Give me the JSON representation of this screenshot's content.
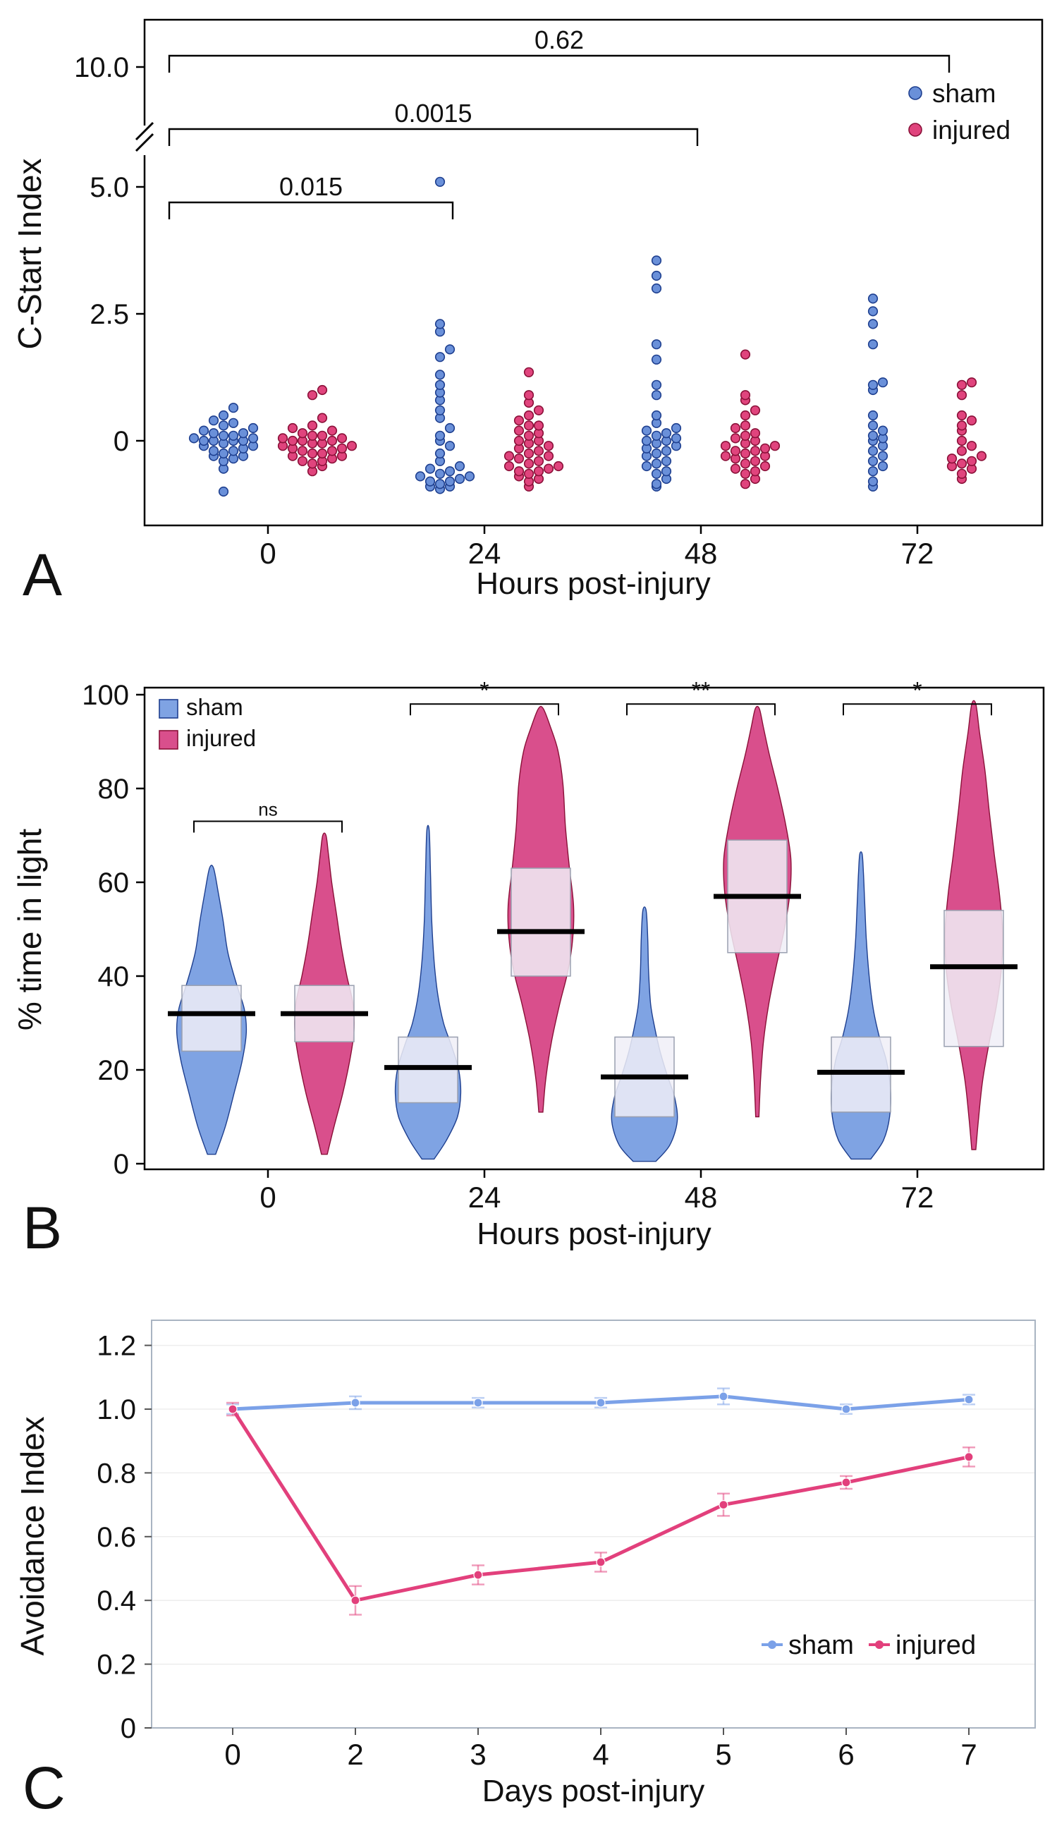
{
  "figure": {
    "background": "#ffffff",
    "colors": {
      "sham_fill": "#6a90d9",
      "sham_stroke": "#1e3f8f",
      "injured_fill": "#e0447d",
      "injured_stroke": "#8a1038",
      "sham_violin": "#7fa3e3",
      "injured_violin": "#d94f8c",
      "box_fill": "#f0eef7",
      "box_stroke": "#9aa0b0",
      "median": "#000000",
      "axis": "#000000",
      "panel_c_frame": "#a9b4c2",
      "sham_line": "#7ba1e8",
      "injured_line": "#e2407c",
      "grid": "#ededed",
      "text": "#111111"
    }
  },
  "panels": {
    "a": "A",
    "b": "B",
    "c": "C"
  },
  "chart_data": [
    {
      "id": "panelA",
      "type": "scatter",
      "title": "",
      "xlabel": "Hours post-injury",
      "ylabel": "C-Start Index",
      "x_categories": [
        "0",
        "24",
        "48",
        "72"
      ],
      "yticks": [
        {
          "v": 10,
          "label": "10.0"
        },
        {
          "v": 5,
          "label": "5.0"
        },
        {
          "v": 2.5,
          "label": "2.5"
        },
        {
          "v": 0,
          "label": "0"
        }
      ],
      "axis_break": true,
      "ylim_note": "axis broken between 5.0 and 10.0",
      "legend": [
        {
          "name": "sham"
        },
        {
          "name": "injured"
        }
      ],
      "significance": [
        {
          "label": "0.015",
          "from_group": 0,
          "to_group": 1,
          "row": 0
        },
        {
          "label": "0.0015",
          "from_group": 0,
          "to_group": 2,
          "row": 1
        },
        {
          "label": "0.62",
          "from_group": 0,
          "to_group": 3,
          "row": 2
        }
      ],
      "series": [
        {
          "name": "sham",
          "points_by_group": [
            [
              -1.0,
              -0.55,
              -0.4,
              -0.35,
              -0.3,
              -0.3,
              -0.25,
              -0.2,
              -0.2,
              -0.15,
              -0.1,
              -0.1,
              -0.05,
              0,
              0,
              0,
              0,
              0.05,
              0.05,
              0.1,
              0.1,
              0.15,
              0.15,
              0.2,
              0.25,
              0.3,
              0.35,
              0.4,
              0.5,
              0.65
            ],
            [
              5.1,
              2.3,
              2.15,
              1.8,
              1.65,
              1.3,
              1.1,
              0.95,
              0.8,
              0.6,
              0.45,
              0.25,
              0.1,
              0,
              -0.1,
              -0.25,
              -0.4,
              -0.5,
              -0.55,
              -0.6,
              -0.65,
              -0.7,
              -0.7,
              -0.75,
              -0.8,
              -0.8,
              -0.85,
              -0.9,
              -0.9,
              -0.95
            ],
            [
              3.55,
              3.25,
              3.0,
              1.9,
              1.6,
              1.1,
              0.9,
              0.5,
              0.35,
              0.25,
              0.2,
              0.15,
              0.1,
              0.05,
              0,
              0,
              -0.05,
              -0.1,
              -0.15,
              -0.2,
              -0.25,
              -0.3,
              -0.4,
              -0.45,
              -0.5,
              -0.6,
              -0.65,
              -0.75,
              -0.85,
              -0.9
            ],
            [
              2.8,
              2.55,
              2.3,
              1.9,
              1.15,
              1.1,
              1.0,
              0.5,
              0.3,
              0.2,
              0.1,
              0.05,
              0,
              -0.1,
              -0.2,
              -0.3,
              -0.4,
              -0.5,
              -0.6,
              -0.8,
              -0.9
            ]
          ]
        },
        {
          "name": "injured",
          "points_by_group": [
            [
              -0.6,
              -0.5,
              -0.45,
              -0.4,
              -0.4,
              -0.35,
              -0.3,
              -0.3,
              -0.25,
              -0.25,
              -0.2,
              -0.2,
              -0.15,
              -0.15,
              -0.1,
              -0.1,
              -0.05,
              -0.05,
              0,
              0,
              0,
              0.05,
              0.05,
              0.1,
              0.1,
              0.15,
              0.2,
              0.25,
              0.3,
              0.45,
              0.9,
              1.0
            ],
            [
              1.35,
              0.9,
              0.75,
              0.6,
              0.5,
              0.4,
              0.3,
              0.3,
              0.2,
              0.15,
              0.1,
              0,
              0,
              -0.05,
              -0.1,
              -0.15,
              -0.2,
              -0.25,
              -0.3,
              -0.3,
              -0.35,
              -0.4,
              -0.45,
              -0.5,
              -0.5,
              -0.55,
              -0.6,
              -0.6,
              -0.65,
              -0.7,
              -0.75,
              -0.8,
              -0.9
            ],
            [
              1.7,
              0.9,
              0.8,
              0.6,
              0.5,
              0.3,
              0.25,
              0.15,
              0.1,
              0.05,
              0,
              -0.05,
              -0.1,
              -0.1,
              -0.15,
              -0.2,
              -0.2,
              -0.25,
              -0.3,
              -0.3,
              -0.35,
              -0.4,
              -0.45,
              -0.5,
              -0.55,
              -0.6,
              -0.65,
              -0.75,
              -0.85
            ],
            [
              1.15,
              1.1,
              0.9,
              0.5,
              0.4,
              0.3,
              0.2,
              0,
              -0.1,
              -0.2,
              -0.3,
              -0.35,
              -0.4,
              -0.45,
              -0.5,
              -0.55,
              -0.65,
              -0.75
            ]
          ]
        }
      ]
    },
    {
      "id": "panelB",
      "type": "violin",
      "title": "",
      "xlabel": "Hours post-injury",
      "ylabel": "% time in light",
      "x_categories": [
        "0",
        "24",
        "48",
        "72"
      ],
      "yticks": [
        0,
        20,
        40,
        60,
        80,
        100
      ],
      "ylim": [
        0,
        100
      ],
      "legend": [
        {
          "name": "sham"
        },
        {
          "name": "injured"
        }
      ],
      "significance": [
        {
          "label": "ns",
          "group": 0,
          "height_v": 73
        },
        {
          "label": "*",
          "group": 1,
          "height_v": 98
        },
        {
          "label": "**",
          "group": 2,
          "height_v": 98
        },
        {
          "label": "*",
          "group": 3,
          "height_v": 98
        }
      ],
      "series": [
        {
          "name": "sham",
          "violins": [
            {
              "median": 32,
              "q1": 24,
              "q3": 38,
              "shape": [
                [
                  2,
                  0.1
                ],
                [
                  8,
                  0.34
                ],
                [
                  15,
                  0.55
                ],
                [
                  22,
                  0.75
                ],
                [
                  28,
                  0.85
                ],
                [
                  33,
                  0.8
                ],
                [
                  38,
                  0.62
                ],
                [
                  45,
                  0.4
                ],
                [
                  52,
                  0.28
                ],
                [
                  58,
                  0.16
                ],
                [
                  63,
                  0.05
                ]
              ]
            },
            {
              "median": 20.5,
              "q1": 13,
              "q3": 27,
              "shape": [
                [
                  1,
                  0.15
                ],
                [
                  5,
                  0.45
                ],
                [
                  10,
                  0.72
                ],
                [
                  15,
                  0.8
                ],
                [
                  20,
                  0.75
                ],
                [
                  25,
                  0.58
                ],
                [
                  30,
                  0.38
                ],
                [
                  36,
                  0.24
                ],
                [
                  43,
                  0.15
                ],
                [
                  52,
                  0.09
                ],
                [
                  62,
                  0.06
                ],
                [
                  71,
                  0.03
                ]
              ]
            },
            {
              "median": 18.5,
              "q1": 10,
              "q3": 27,
              "shape": [
                [
                  0.5,
                  0.28
                ],
                [
                  4,
                  0.62
                ],
                [
                  9,
                  0.8
                ],
                [
                  14,
                  0.74
                ],
                [
                  19,
                  0.55
                ],
                [
                  24,
                  0.38
                ],
                [
                  29,
                  0.25
                ],
                [
                  34,
                  0.15
                ],
                [
                  41,
                  0.1
                ],
                [
                  48,
                  0.08
                ],
                [
                  54,
                  0.04
                ]
              ]
            },
            {
              "median": 19.5,
              "q1": 11,
              "q3": 27,
              "shape": [
                [
                  1,
                  0.24
                ],
                [
                  5,
                  0.55
                ],
                [
                  10,
                  0.7
                ],
                [
                  16,
                  0.72
                ],
                [
                  22,
                  0.62
                ],
                [
                  27,
                  0.45
                ],
                [
                  33,
                  0.3
                ],
                [
                  40,
                  0.2
                ],
                [
                  48,
                  0.13
                ],
                [
                  56,
                  0.09
                ],
                [
                  62,
                  0.06
                ],
                [
                  66,
                  0.03
                ]
              ]
            }
          ]
        },
        {
          "name": "injured",
          "violins": [
            {
              "median": 32,
              "q1": 26,
              "q3": 38,
              "shape": [
                [
                  2,
                  0.07
                ],
                [
                  8,
                  0.24
                ],
                [
                  15,
                  0.45
                ],
                [
                  22,
                  0.62
                ],
                [
                  28,
                  0.72
                ],
                [
                  34,
                  0.7
                ],
                [
                  40,
                  0.55
                ],
                [
                  46,
                  0.42
                ],
                [
                  53,
                  0.3
                ],
                [
                  60,
                  0.18
                ],
                [
                  66,
                  0.1
                ],
                [
                  70,
                  0.04
                ]
              ]
            },
            {
              "median": 49.5,
              "q1": 40,
              "q3": 63,
              "shape": [
                [
                  11,
                  0.05
                ],
                [
                  18,
                  0.12
                ],
                [
                  26,
                  0.26
                ],
                [
                  34,
                  0.46
                ],
                [
                  41,
                  0.66
                ],
                [
                  48,
                  0.78
                ],
                [
                  55,
                  0.8
                ],
                [
                  63,
                  0.7
                ],
                [
                  72,
                  0.6
                ],
                [
                  81,
                  0.54
                ],
                [
                  88,
                  0.42
                ],
                [
                  93,
                  0.24
                ],
                [
                  97,
                  0.06
                ]
              ]
            },
            {
              "median": 57,
              "q1": 45,
              "q3": 69,
              "shape": [
                [
                  10,
                  0.04
                ],
                [
                  18,
                  0.08
                ],
                [
                  26,
                  0.15
                ],
                [
                  34,
                  0.28
                ],
                [
                  42,
                  0.46
                ],
                [
                  50,
                  0.66
                ],
                [
                  58,
                  0.8
                ],
                [
                  65,
                  0.82
                ],
                [
                  72,
                  0.7
                ],
                [
                  80,
                  0.5
                ],
                [
                  87,
                  0.3
                ],
                [
                  93,
                  0.15
                ],
                [
                  97,
                  0.05
                ]
              ]
            },
            {
              "median": 42,
              "q1": 25,
              "q3": 54,
              "shape": [
                [
                  3,
                  0.05
                ],
                [
                  10,
                  0.12
                ],
                [
                  18,
                  0.22
                ],
                [
                  26,
                  0.38
                ],
                [
                  34,
                  0.56
                ],
                [
                  42,
                  0.68
                ],
                [
                  50,
                  0.7
                ],
                [
                  58,
                  0.62
                ],
                [
                  66,
                  0.5
                ],
                [
                  75,
                  0.38
                ],
                [
                  84,
                  0.27
                ],
                [
                  92,
                  0.14
                ],
                [
                  98,
                  0.05
                ]
              ]
            }
          ]
        }
      ]
    },
    {
      "id": "panelC",
      "type": "line",
      "title": "",
      "xlabel": "Days post-injury",
      "ylabel": "Avoidance Index",
      "x_categories": [
        "0",
        "2",
        "3",
        "4",
        "5",
        "6",
        "7"
      ],
      "yticks": [
        {
          "v": 0,
          "label": "0"
        },
        {
          "v": 0.2,
          "label": "0.2"
        },
        {
          "v": 0.4,
          "label": "0.4"
        },
        {
          "v": 0.6,
          "label": "0.6"
        },
        {
          "v": 0.8,
          "label": "0.8"
        },
        {
          "v": 1.0,
          "label": "1.0"
        },
        {
          "v": 1.2,
          "label": "1.2"
        }
      ],
      "ylim": [
        0,
        1.28
      ],
      "grid": true,
      "legend_position": "bottom-right",
      "legend": [
        {
          "name": "sham"
        },
        {
          "name": "injured"
        }
      ],
      "series": [
        {
          "name": "sham",
          "values": [
            1.0,
            1.02,
            1.02,
            1.02,
            1.04,
            1.0,
            1.03
          ],
          "errors": [
            0.015,
            0.02,
            0.015,
            0.015,
            0.025,
            0.015,
            0.015
          ]
        },
        {
          "name": "injured",
          "values": [
            1.0,
            0.4,
            0.48,
            0.52,
            0.7,
            0.77,
            0.85
          ],
          "errors": [
            0.02,
            0.045,
            0.03,
            0.03,
            0.035,
            0.02,
            0.03
          ]
        }
      ]
    }
  ]
}
